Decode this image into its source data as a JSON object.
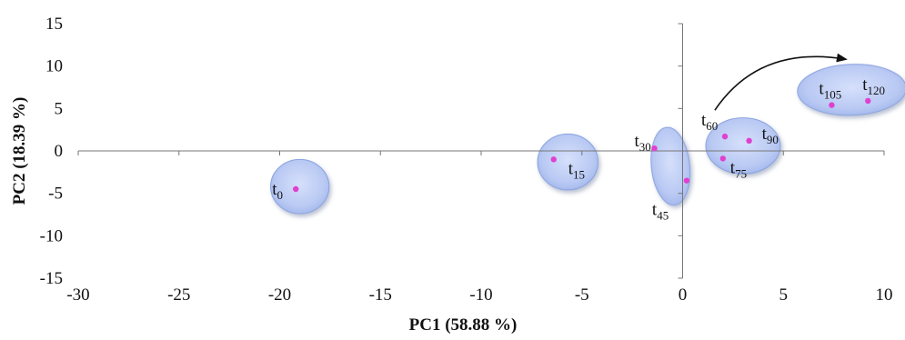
{
  "chart_data": {
    "type": "scatter",
    "title": "",
    "xlabel": "PC1 (58.88 %)",
    "ylabel": "PC2 (18.39 %)",
    "xlim": [
      -30,
      10
    ],
    "ylim": [
      -15,
      15
    ],
    "xticks": [
      -30,
      -25,
      -20,
      -15,
      -10,
      -5,
      0,
      5,
      10
    ],
    "yticks": [
      -15,
      -10,
      -5,
      0,
      5,
      10,
      15
    ],
    "grid": false,
    "colors": {
      "point": "#e040d0",
      "group_fill": "#b9c9f3",
      "group_stroke": "#8aa3e0",
      "axis": "#777777"
    },
    "points": [
      {
        "label": "t",
        "sub": "0",
        "x": -19.2,
        "y": -4.5
      },
      {
        "label": "t",
        "sub": "15",
        "x": -6.4,
        "y": -1.0
      },
      {
        "label": "t",
        "sub": "30",
        "x": -1.4,
        "y": 0.3
      },
      {
        "label": "t",
        "sub": "45",
        "x": 0.2,
        "y": -3.5
      },
      {
        "label": "t",
        "sub": "60",
        "x": 2.1,
        "y": 1.7
      },
      {
        "label": "t",
        "sub": "75",
        "x": 2.0,
        "y": -0.9
      },
      {
        "label": "t",
        "sub": "90",
        "x": 3.3,
        "y": 1.2
      },
      {
        "label": "t",
        "sub": "105",
        "x": 7.4,
        "y": 5.4
      },
      {
        "label": "t",
        "sub": "120",
        "x": 9.2,
        "y": 5.9
      }
    ],
    "groups": [
      {
        "name": "t0",
        "cx": -19.0,
        "cy": -4.2,
        "rx": 1.45,
        "ry": 3.2,
        "rot": 0
      },
      {
        "name": "t15",
        "cx": -5.7,
        "cy": -1.3,
        "rx": 1.5,
        "ry": 3.3,
        "rot": 0
      },
      {
        "name": "t30-t45",
        "cx": -0.6,
        "cy": -1.8,
        "rx": 0.95,
        "ry": 4.6,
        "rot": -6
      },
      {
        "name": "t60-t90",
        "cx": 3.0,
        "cy": 0.6,
        "rx": 1.85,
        "ry": 3.3,
        "rot": 0
      },
      {
        "name": "t105-t120",
        "cx": 8.4,
        "cy": 7.2,
        "rx": 2.7,
        "ry": 3.0,
        "rot": -2
      }
    ],
    "arrow": {
      "from": [
        1.6,
        4.8
      ],
      "to": [
        8.1,
        10.8
      ],
      "via": [
        3.8,
        12.5
      ]
    }
  }
}
